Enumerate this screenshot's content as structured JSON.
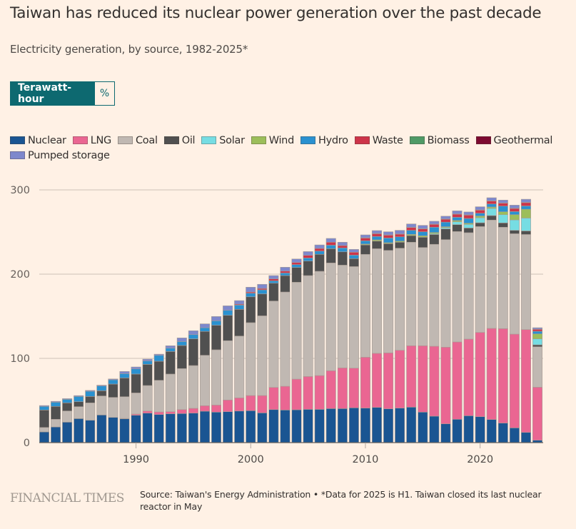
{
  "header": {
    "title": "Taiwan has reduced its nuclear power generation over the past decade",
    "subtitle": "Electricity generation, by source, 1982-2025*"
  },
  "toggle": {
    "options": [
      {
        "label": "Terawatt-hour",
        "active": true
      },
      {
        "label": "%",
        "active": false
      }
    ]
  },
  "footer": {
    "logo": "FINANCIAL TIMES",
    "source": "Source: Taiwan's Energy Administration • *Data for 2025 is H1. Taiwan closed its last nuclear reactor in May"
  },
  "chart_data": {
    "type": "bar",
    "stacked": true,
    "title": "Electricity generation, by source, 1982-2025*",
    "xlabel": "",
    "ylabel": "Terawatt-hour",
    "ylim": [
      0,
      300
    ],
    "yticks": [
      0,
      100,
      200,
      300
    ],
    "xticks": [
      1990,
      2000,
      2010,
      2020
    ],
    "grid": true,
    "legend_position": "top-left",
    "categories": [
      1982,
      1983,
      1984,
      1985,
      1986,
      1987,
      1988,
      1989,
      1990,
      1991,
      1992,
      1993,
      1994,
      1995,
      1996,
      1997,
      1998,
      1999,
      2000,
      2001,
      2002,
      2003,
      2004,
      2005,
      2006,
      2007,
      2008,
      2009,
      2010,
      2011,
      2012,
      2013,
      2014,
      2015,
      2016,
      2017,
      2018,
      2019,
      2020,
      2021,
      2022,
      2023,
      2024,
      2025
    ],
    "series": [
      {
        "name": "Nuclear",
        "color": "#1a5592",
        "values": [
          12.7,
          18.6,
          24.3,
          28.5,
          26.6,
          32.8,
          30.0,
          28.2,
          32.5,
          35.0,
          33.3,
          34.2,
          34.5,
          35.0,
          37.3,
          36.2,
          36.7,
          37.5,
          37.9,
          35.3,
          39.2,
          38.7,
          39.0,
          39.5,
          39.5,
          40.4,
          40.4,
          41.3,
          41.0,
          41.8,
          40.1,
          41.0,
          42.1,
          36.2,
          31.4,
          22.3,
          27.7,
          31.9,
          30.8,
          27.4,
          23.2,
          17.5,
          12.1,
          2.8
        ]
      },
      {
        "name": "LNG",
        "color": "#ea6692",
        "values": [
          0,
          0,
          0,
          0,
          0,
          0,
          0,
          0.5,
          1.4,
          2.5,
          3.1,
          2.5,
          4.7,
          5.7,
          6.5,
          8.4,
          13.9,
          15.6,
          18.0,
          20.6,
          26.3,
          28.2,
          36.4,
          39.0,
          40.1,
          44.9,
          48.3,
          47.1,
          60.4,
          64.2,
          66.4,
          68.6,
          72.9,
          78.8,
          83.0,
          91.0,
          91.8,
          91.0,
          100.0,
          108.2,
          112.1,
          111.3,
          122.1,
          63.0
        ]
      },
      {
        "name": "Coal",
        "color": "#c0b8b2",
        "values": [
          5.3,
          9.1,
          13.3,
          14.2,
          20.6,
          22.6,
          23.7,
          25.8,
          25.1,
          30.3,
          37.6,
          44.7,
          48.7,
          50.8,
          59.9,
          65.6,
          70.4,
          73.4,
          86.5,
          94.6,
          102.6,
          111.9,
          115.0,
          119.8,
          123.8,
          128.0,
          122.0,
          120.6,
          122.1,
          124.2,
          121.7,
          121.2,
          122.9,
          116.6,
          121.0,
          127.7,
          131.1,
          126.3,
          125.7,
          128.6,
          120.4,
          119.2,
          112.9,
          48.0
        ]
      },
      {
        "name": "Oil",
        "color": "#505050",
        "values": [
          20.7,
          15.3,
          9.6,
          5.9,
          7.6,
          6.2,
          15.8,
          22.3,
          22.4,
          25.1,
          22.6,
          26.8,
          27.4,
          31.7,
          28.3,
          29.1,
          30.1,
          31.7,
          30.7,
          26.0,
          21.2,
          19.5,
          17.5,
          17.2,
          20.1,
          16.9,
          15.8,
          9.4,
          11.2,
          9.0,
          8.0,
          7.1,
          7.9,
          12.2,
          11.7,
          12.7,
          8.2,
          5.6,
          4.5,
          5.3,
          5.1,
          4.0,
          4.2,
          2.3
        ]
      },
      {
        "name": "Solar",
        "color": "#76dde3",
        "values": [
          0,
          0,
          0,
          0,
          0,
          0,
          0,
          0,
          0,
          0,
          0,
          0,
          0,
          0,
          0,
          0,
          0,
          0,
          0,
          0,
          0,
          0,
          0,
          0,
          0,
          0,
          0,
          0,
          0,
          0,
          0,
          0,
          0,
          0,
          1.0,
          1.5,
          3.4,
          4.3,
          5.9,
          8.5,
          9.8,
          12.4,
          15.3,
          7.1
        ]
      },
      {
        "name": "Wind",
        "color": "#9cbe5a",
        "values": [
          0,
          0,
          0,
          0,
          0,
          0,
          0,
          0,
          0,
          0,
          0,
          0,
          0,
          0,
          0,
          0,
          0,
          0,
          0,
          0,
          0,
          0,
          0,
          0,
          0,
          0,
          0,
          0,
          1.0,
          1.5,
          1.1,
          1.3,
          1.4,
          1.7,
          1.3,
          1.1,
          1.5,
          1.3,
          2.1,
          1.7,
          3.4,
          6.2,
          10.4,
          5.9
        ]
      },
      {
        "name": "Hydro",
        "color": "#2a91d0",
        "values": [
          4.3,
          5.0,
          4.2,
          6.2,
          6.2,
          5.6,
          5.1,
          5.1,
          6.1,
          4.0,
          7.0,
          3.9,
          4.7,
          5.0,
          4.4,
          5.3,
          5.9,
          5.1,
          4.3,
          4.9,
          2.8,
          3.1,
          3.4,
          3.7,
          3.9,
          4.2,
          4.6,
          4.2,
          3.9,
          4.0,
          5.6,
          5.1,
          4.8,
          4.8,
          6.3,
          5.4,
          3.8,
          5.7,
          3.3,
          3.6,
          6.8,
          3.7,
          4.0,
          3.1
        ]
      },
      {
        "name": "Waste",
        "color": "#cd3449",
        "values": [
          0,
          0,
          0,
          0,
          0,
          0,
          0,
          0,
          0,
          0,
          0,
          0,
          0,
          0,
          0,
          0,
          0,
          1.0,
          1.4,
          1.6,
          2.2,
          2.2,
          2.5,
          3.1,
          3.1,
          3.5,
          2.8,
          3.4,
          3.3,
          3.3,
          3.4,
          3.2,
          3.3,
          3.4,
          3.4,
          3.5,
          3.7,
          4.0,
          3.7,
          3.4,
          3.4,
          3.7,
          3.9,
          2.3
        ]
      },
      {
        "name": "Biomass",
        "color": "#4f9a66",
        "values": [
          0,
          0,
          0,
          0,
          0,
          0,
          0,
          0,
          0,
          0,
          0,
          0,
          0,
          0,
          0,
          0,
          0,
          0,
          0,
          0,
          0,
          0,
          0,
          0,
          0,
          0,
          0,
          0,
          0.3,
          0.3,
          0.3,
          0.3,
          0.3,
          0.3,
          0.3,
          0.3,
          0.3,
          0.3,
          0.3,
          0.3,
          0.3,
          0.3,
          0.3,
          0.2
        ]
      },
      {
        "name": "Geothermal",
        "color": "#7d0a30",
        "values": [
          0,
          0,
          0,
          0,
          0,
          0,
          0,
          0,
          0,
          0,
          0,
          0,
          0,
          0,
          0,
          0,
          0,
          0,
          0,
          0,
          0,
          0,
          0,
          0,
          0,
          0,
          0,
          0,
          0,
          0,
          0,
          0,
          0,
          0,
          0,
          0,
          0,
          0,
          0,
          0,
          0,
          0,
          0,
          0
        ]
      },
      {
        "name": "Pumped storage",
        "color": "#7e88cc",
        "values": [
          1.0,
          1.0,
          0.8,
          1.0,
          1.0,
          1.0,
          1.0,
          2.6,
          2.3,
          2.2,
          1.4,
          2.9,
          4.3,
          4.6,
          4.6,
          5.1,
          5.4,
          4.3,
          5.7,
          4.9,
          4.0,
          4.6,
          4.2,
          4.5,
          4.2,
          4.5,
          4.0,
          3.4,
          3.4,
          3.4,
          3.7,
          4.2,
          4.0,
          3.9,
          3.4,
          3.3,
          3.6,
          3.4,
          3.7,
          3.7,
          3.4,
          3.6,
          3.7,
          1.7
        ]
      }
    ]
  }
}
